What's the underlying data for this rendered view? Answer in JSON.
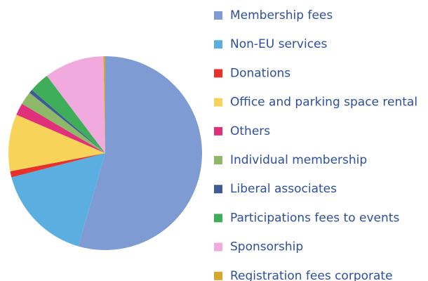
{
  "chart_data": {
    "type": "pie",
    "categories": [
      "Membership fees",
      "Non-EU services",
      "Donations",
      "Office and parking space rental",
      "Others",
      "Individual membership",
      "Liberal associates",
      "Participations fees to events",
      "Sponsorship",
      "Registration fees corporate"
    ],
    "values": [
      54.5,
      16.5,
      1,
      9.5,
      2,
      2.2,
      0.6,
      3.4,
      10,
      0.3
    ],
    "colors": [
      "#7f9bd4",
      "#5aafe0",
      "#e8312a",
      "#f7d35a",
      "#e0307a",
      "#8db868",
      "#3f5a96",
      "#3fae5a",
      "#f0aade",
      "#d4a82a"
    ]
  }
}
